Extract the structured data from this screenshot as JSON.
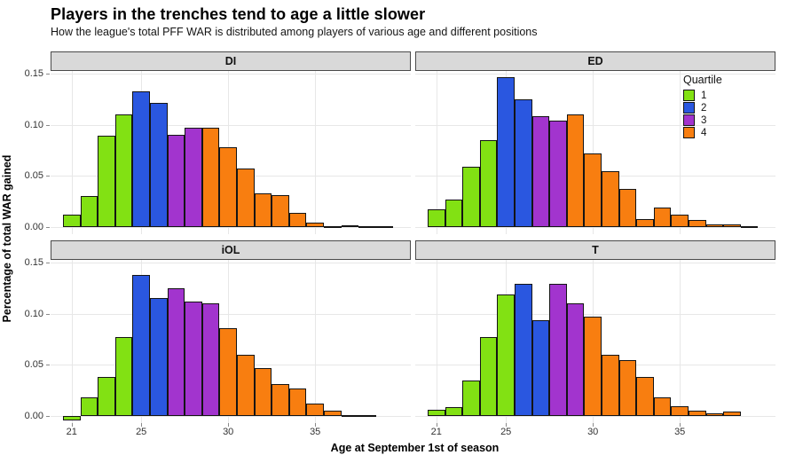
{
  "header": {
    "title": "Players in the trenches tend to age a little slower",
    "subtitle": "How the league's total PFF WAR is distributed among players of various age and different positions"
  },
  "chart_data": {
    "type": "bar",
    "title": "Players in the trenches tend to age a little slower",
    "subtitle": "How the league's total PFF WAR is distributed among players of various age and different positions",
    "xlabel": "Age at September 1st of season",
    "ylabel": "Percentage of total WAR gained",
    "x_ticks": [
      21,
      25,
      30,
      35
    ],
    "y_ticks": [
      0.0,
      0.05,
      0.1,
      0.15
    ],
    "xlim": [
      20.5,
      39.5
    ],
    "ylim": [
      -0.005,
      0.155
    ],
    "grid": "major-light-gray",
    "ages": [
      21,
      22,
      23,
      24,
      25,
      26,
      27,
      28,
      29,
      30,
      31,
      32,
      33,
      34,
      35,
      36,
      37,
      38,
      39
    ],
    "legend": {
      "title": "Quartile",
      "position": "inside top-right of ED panel",
      "entries": [
        {
          "label": "1",
          "color": "#82E113"
        },
        {
          "label": "2",
          "color": "#2A57E0"
        },
        {
          "label": "3",
          "color": "#A234CE"
        },
        {
          "label": "4",
          "color": "#F87E10"
        }
      ]
    },
    "facets": [
      {
        "name": "DI",
        "values": [
          0.012,
          0.03,
          0.089,
          0.11,
          0.133,
          0.121,
          0.09,
          0.097,
          0.097,
          0.078,
          0.057,
          0.033,
          0.031,
          0.014,
          0.004,
          0.001,
          0.002,
          0.001,
          0.001
        ],
        "quartile": [
          1,
          1,
          1,
          1,
          2,
          2,
          3,
          3,
          4,
          4,
          4,
          4,
          4,
          4,
          4,
          4,
          4,
          4,
          4
        ]
      },
      {
        "name": "ED",
        "values": [
          0.017,
          0.027,
          0.059,
          0.085,
          0.147,
          0.125,
          0.108,
          0.104,
          0.11,
          0.072,
          0.055,
          0.037,
          0.008,
          0.019,
          0.012,
          0.007,
          0.003,
          0.003,
          0.001
        ],
        "quartile": [
          1,
          1,
          1,
          1,
          2,
          2,
          3,
          3,
          4,
          4,
          4,
          4,
          4,
          4,
          4,
          4,
          4,
          4,
          4
        ]
      },
      {
        "name": "iOL",
        "values": [
          -0.004,
          0.018,
          0.038,
          0.077,
          0.138,
          0.115,
          0.125,
          0.112,
          0.11,
          0.086,
          0.06,
          0.047,
          0.031,
          0.027,
          0.012,
          0.005,
          0.001,
          0.001,
          null
        ],
        "quartile": [
          1,
          1,
          1,
          1,
          2,
          2,
          3,
          3,
          3,
          4,
          4,
          4,
          4,
          4,
          4,
          4,
          4,
          4,
          4
        ]
      },
      {
        "name": "T",
        "values": [
          0.006,
          0.009,
          0.035,
          0.077,
          0.119,
          0.129,
          0.094,
          0.129,
          0.11,
          0.097,
          0.06,
          0.055,
          0.038,
          0.018,
          0.01,
          0.005,
          0.003,
          0.004,
          null
        ],
        "quartile": [
          1,
          1,
          1,
          1,
          1,
          2,
          2,
          3,
          3,
          4,
          4,
          4,
          4,
          4,
          4,
          4,
          4,
          4,
          4
        ]
      }
    ]
  }
}
